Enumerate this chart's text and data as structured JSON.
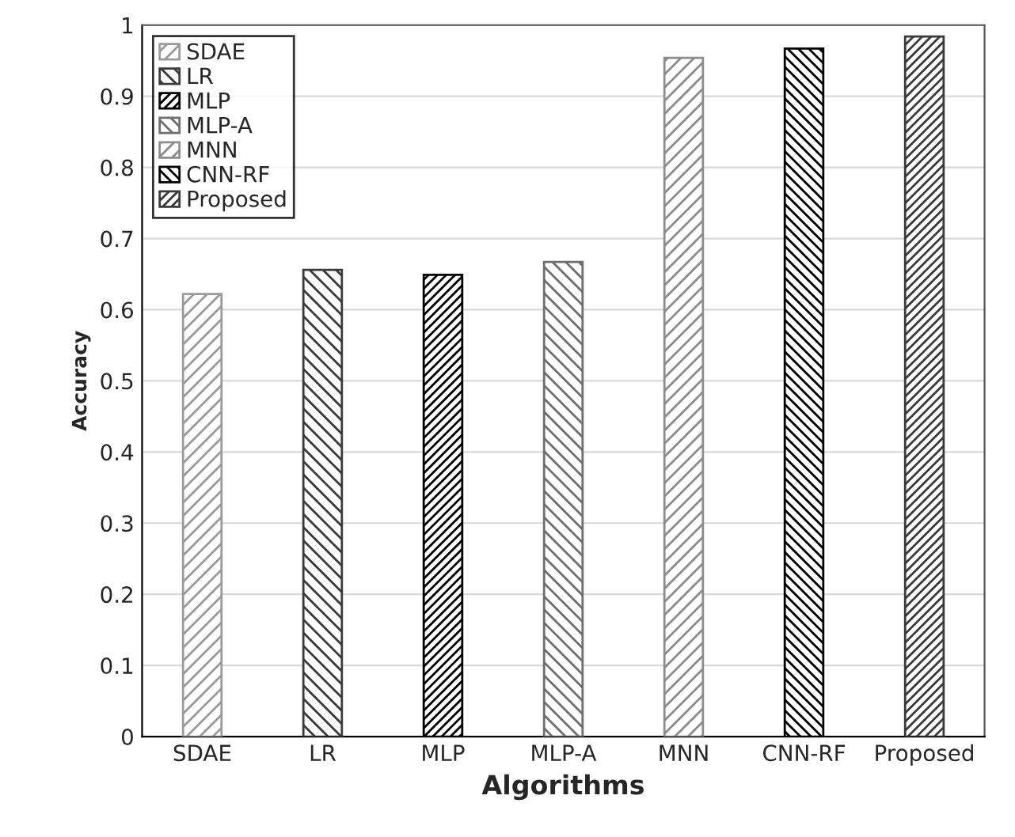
{
  "chart_data": {
    "type": "bar",
    "xlabel": "Algorithms",
    "ylabel": "Accuracy",
    "categories": [
      "SDAE",
      "LR",
      "MLP",
      "MLP-A",
      "MNN",
      "CNN-RF",
      "Proposed"
    ],
    "series": [
      {
        "name": "SDAE",
        "color": "#9a9a9a",
        "values": [
          0.622,
          null,
          null,
          null,
          null,
          null,
          null
        ]
      },
      {
        "name": "LR",
        "color": "#3a3a3a",
        "values": [
          null,
          0.656,
          null,
          null,
          null,
          null,
          null
        ]
      },
      {
        "name": "MLP",
        "color": "#000000",
        "values": [
          null,
          null,
          0.649,
          null,
          null,
          null,
          null
        ]
      },
      {
        "name": "MLP-A",
        "color": "#6e6e6e",
        "values": [
          null,
          null,
          null,
          0.667,
          null,
          null,
          null
        ]
      },
      {
        "name": "MNN",
        "color": "#8c8c8c",
        "values": [
          null,
          null,
          null,
          null,
          0.954,
          null,
          null
        ]
      },
      {
        "name": "CNN-RF",
        "color": "#000000",
        "values": [
          null,
          null,
          null,
          null,
          null,
          0.967,
          null
        ]
      },
      {
        "name": "Proposed",
        "color": "#3a3a3a",
        "values": [
          null,
          null,
          null,
          null,
          null,
          null,
          0.984
        ]
      }
    ],
    "ylim": [
      0,
      1
    ],
    "yticks": [
      0,
      0.1,
      0.2,
      0.3,
      0.4,
      0.5,
      0.6,
      0.7,
      0.8,
      0.9,
      1
    ],
    "grid": "y",
    "legend": "top left"
  }
}
